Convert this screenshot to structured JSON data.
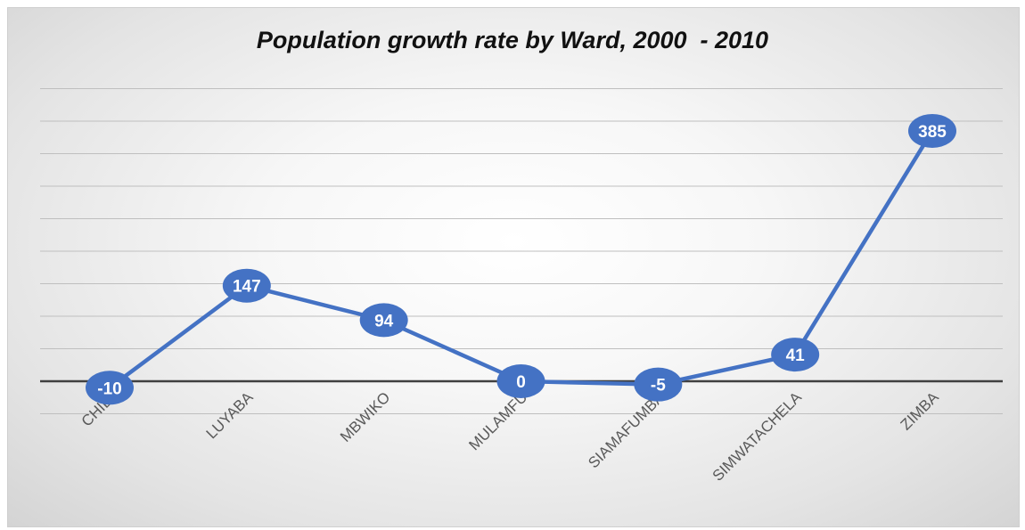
{
  "chart_data": {
    "type": "line",
    "title": "Population growth rate by Ward, 2000  - 2010",
    "xlabel": "",
    "ylabel": "",
    "categories": [
      "CHIDI",
      "LUYABA",
      "MBWIKO",
      "MULAMFU",
      "SIAMAFUMBA",
      "SIMWATACHELA",
      "ZIMBA"
    ],
    "series": [
      {
        "values": [
          -10,
          147,
          94,
          0,
          -5,
          41,
          385
        ]
      }
    ],
    "data_labels": [
      "-10",
      "147",
      "94",
      "0",
      "-5",
      "41",
      "385"
    ],
    "ylim": [
      -50,
      450
    ],
    "grid": true,
    "legend": "none",
    "line_color": "#4472c4",
    "marker_color": "#4472c4",
    "label_color": "#ffffff",
    "gridline_color": "#bfbfbf",
    "zero_line_color": "#404040",
    "tick_label_color": "#595959"
  }
}
